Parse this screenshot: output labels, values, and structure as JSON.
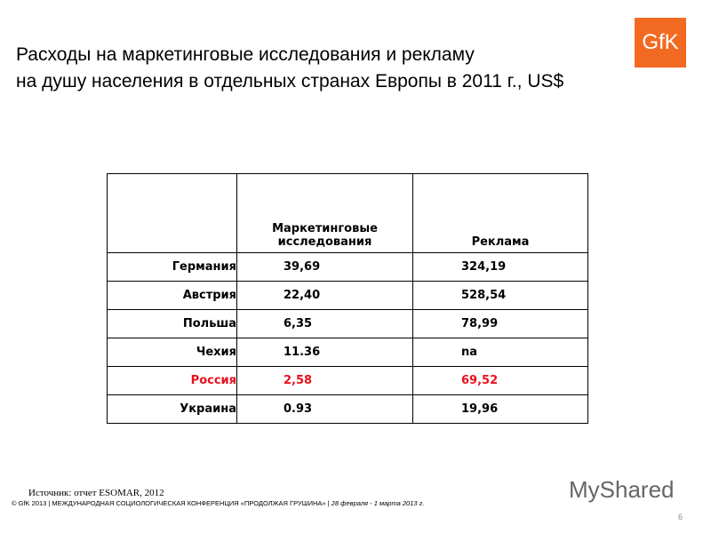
{
  "header": {
    "title": [
      "Расходы на маркетинговые исследования и рекламу",
      "на душу населения в отдельных странах Европы в 2011 г., US$"
    ],
    "logo": "GfK"
  },
  "table": {
    "columns": [
      "",
      "Маркетинговые исследования",
      "Реклама"
    ],
    "rows": [
      {
        "cells": [
          "Германия",
          "39,69",
          "324,19"
        ],
        "color": "#000000"
      },
      {
        "cells": [
          "Австрия",
          "22,40",
          "528,54"
        ],
        "color": "#000000"
      },
      {
        "cells": [
          "Польша",
          "6,35",
          "78,99"
        ],
        "color": "#000000"
      },
      {
        "cells": [
          "Чехия",
          "11.36",
          "na"
        ],
        "color": "#000000"
      },
      {
        "cells": [
          "Россия",
          "2,58",
          "69,52"
        ],
        "color": "#e8111b"
      },
      {
        "cells": [
          "Украина",
          "0.93",
          "19,96"
        ],
        "color": "#000000"
      }
    ]
  },
  "source": "Источник: отчет ESOMAR, 2012",
  "footer": {
    "text": "© GfK 2013 | МЕЖДУНАРОДНАЯ СОЦИОЛОГИЧЕСКАЯ КОНФЕРЕНЦИЯ «ПРОДОЛЖАЯ ГРУШИНА» |",
    "date": "28 февраля - 1 марта 2013 г."
  },
  "page_number": "6",
  "watermark": "MyShared"
}
